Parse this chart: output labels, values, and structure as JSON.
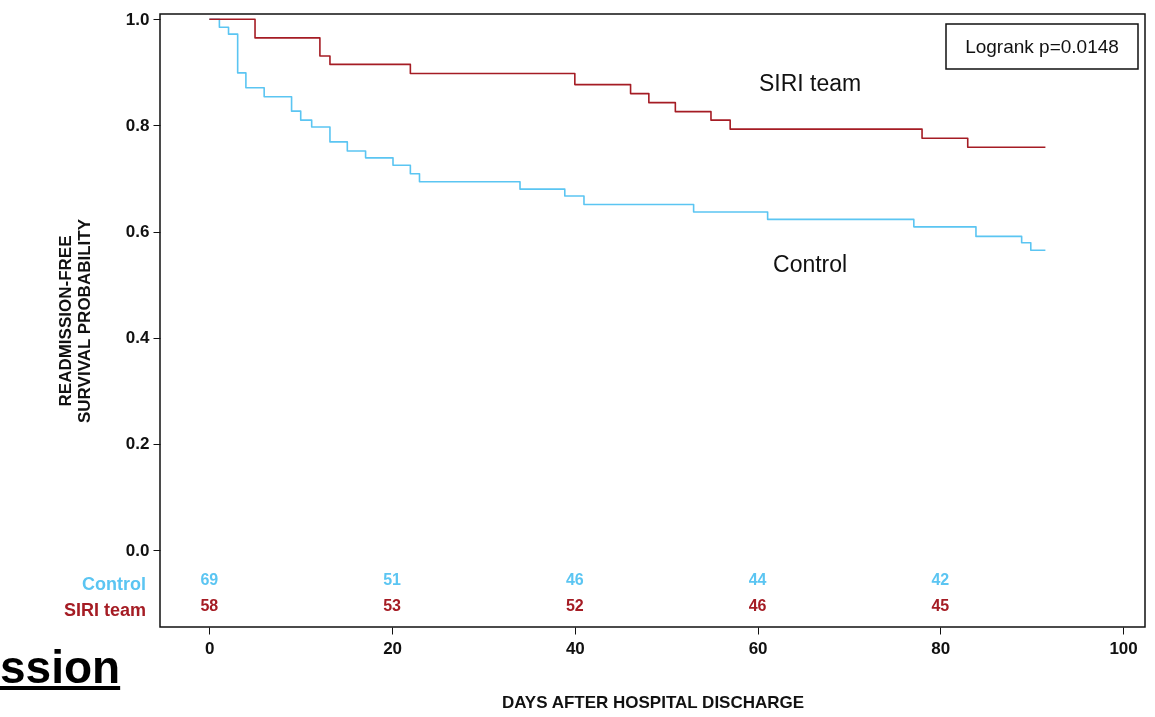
{
  "chart_data": {
    "type": "step",
    "xlabel": "DAYS AFTER HOSPITAL DISCHARGE",
    "ylabel": "READMISSION-FREE\nSURVIVAL PROBABILITY",
    "xlim": [
      -5.4,
      102.4
    ],
    "ylim": [
      -0.145,
      1.01
    ],
    "xticks": [
      0,
      20,
      40,
      60,
      80,
      100
    ],
    "yticks": [
      {
        "value": 0,
        "label": "0.0"
      },
      {
        "value": 0.2,
        "label": "0.2"
      },
      {
        "value": 0.4,
        "label": "0.4"
      },
      {
        "value": 0.6,
        "label": "0.6"
      },
      {
        "value": 0.8,
        "label": "0.8"
      },
      {
        "value": 1,
        "label": "1.0"
      }
    ],
    "grid": false,
    "series": [
      {
        "name": "Control",
        "color": "#5bc5f2",
        "x": [
          0,
          1.1,
          2.1,
          3.1,
          4.0,
          6.0,
          9.0,
          10.0,
          11.2,
          13.2,
          15.1,
          17.1,
          20.1,
          22.0,
          23.0,
          34.0,
          38.9,
          41.0,
          53.0,
          61.1,
          77.1,
          83.9,
          88.9,
          89.9,
          91.5
        ],
        "values": [
          1.0,
          0.985,
          0.972,
          0.899,
          0.871,
          0.854,
          0.827,
          0.81,
          0.797,
          0.769,
          0.752,
          0.739,
          0.725,
          0.709,
          0.694,
          0.68,
          0.667,
          0.651,
          0.637,
          0.623,
          0.609,
          0.591,
          0.579,
          0.565,
          0.565
        ]
      },
      {
        "name": "SIRI team",
        "color": "#a51c24",
        "x": [
          0,
          5.0,
          12.1,
          13.2,
          22.0,
          40.0,
          46.1,
          48.1,
          51.0,
          54.9,
          57.0,
          78.0,
          83.0,
          91.5
        ],
        "values": [
          1.0,
          0.965,
          0.931,
          0.915,
          0.898,
          0.877,
          0.86,
          0.843,
          0.826,
          0.81,
          0.793,
          0.776,
          0.759,
          0.759
        ]
      }
    ],
    "annotations": [
      "Logrank p=0.0148",
      "ssion",
      "69",
      "51",
      "46",
      "44",
      "42",
      "58",
      "53",
      "52",
      "46",
      "45"
    ]
  }
}
